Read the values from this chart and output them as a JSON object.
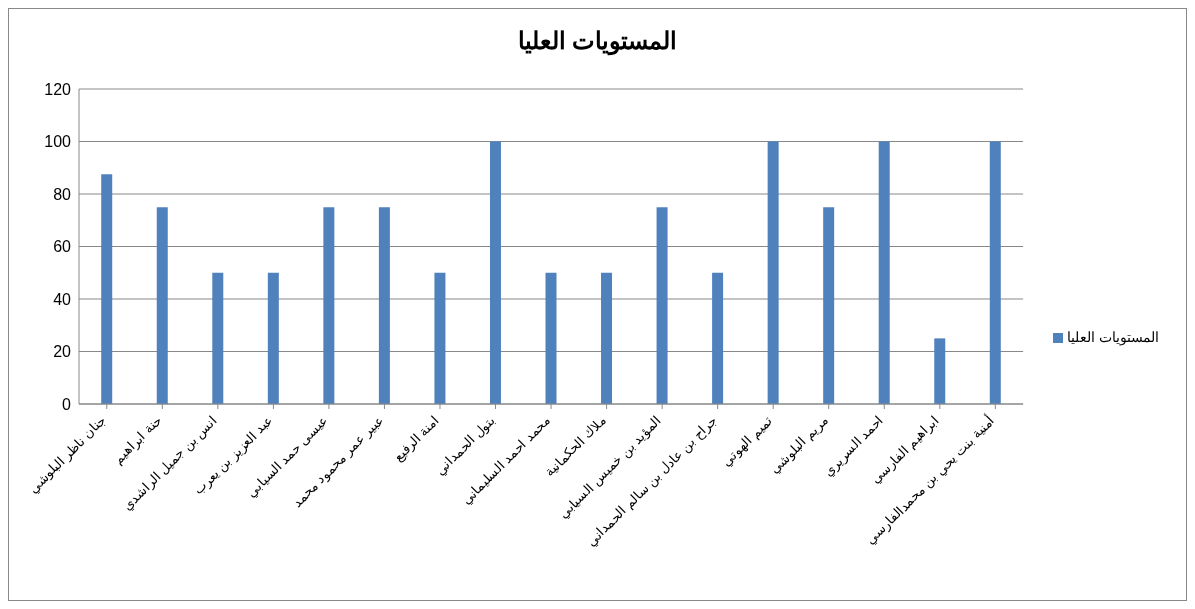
{
  "chart_data": {
    "type": "bar",
    "title": "المستويات العليا",
    "categories": [
      "جنان ناظر البلوشي",
      "حنة ابراهيم",
      "انس بن جميل الراشدي",
      "عبد العزيز بن يعرب",
      "عيسى حمد السيابي",
      "عبير عمر محمود محمد",
      "امنة الرفيع",
      "بتول الحمداني",
      "محمد احمد السليماني",
      "ملاك الحكمانية",
      "المؤيد بن خميس السيابي",
      "جراح بن عادل بن سالم الحمداني",
      "تميم الهوتي",
      "مريم البلوشي",
      "احمد السريري",
      "ابراهيم الفارسي",
      "أمنية بنت يحي بن محمدالفارسي"
    ],
    "series": [
      {
        "name": "المستويات العليا",
        "color": "#4f81bd",
        "values": [
          87.5,
          75,
          50,
          50,
          75,
          75,
          50,
          100,
          50,
          50,
          75,
          50,
          100,
          75,
          100,
          25,
          100
        ]
      }
    ],
    "ylim": [
      0,
      120
    ],
    "yticks": [
      0,
      20,
      40,
      60,
      80,
      100,
      120
    ],
    "grid": "y",
    "legend": "right"
  }
}
